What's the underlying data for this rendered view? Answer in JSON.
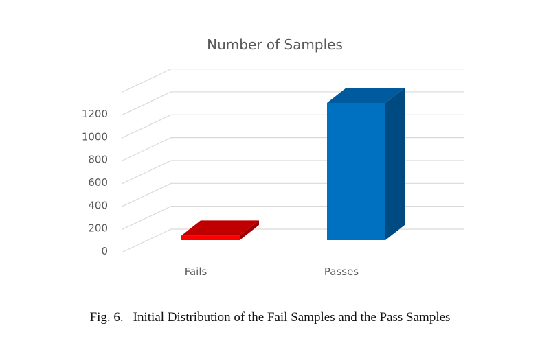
{
  "chart_data": {
    "type": "bar",
    "title": "Number of Samples",
    "categories": [
      "Fails",
      "Passes"
    ],
    "values": [
      40,
      1200
    ],
    "ylim": [
      0,
      1400
    ],
    "yticks": [
      0,
      200,
      400,
      600,
      800,
      1000,
      1200
    ],
    "grid": true,
    "legend": "none",
    "colors": {
      "Fails": {
        "front": "#FF0000",
        "top": "#C00000",
        "side": "#A00000"
      },
      "Passes": {
        "front": "#0070C0",
        "top": "#005A9E",
        "side": "#004A82"
      }
    },
    "gridline_color": "#D9D9D9"
  },
  "caption": {
    "number": "Fig. 6.",
    "text": "Initial Distribution of the Fail Samples and the Pass Samples"
  }
}
